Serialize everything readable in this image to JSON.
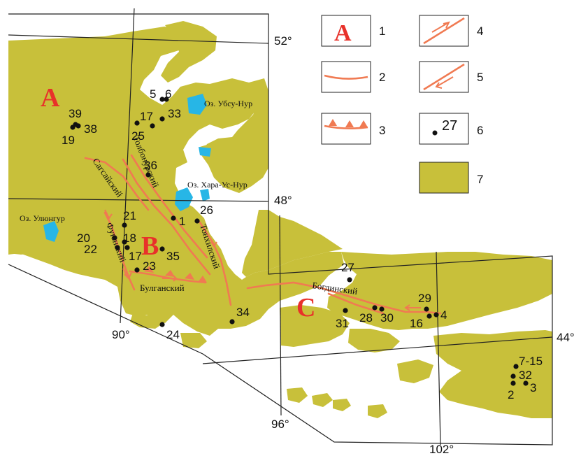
{
  "map": {
    "colors": {
      "land": "#c8c03a",
      "water": "#27b6e6",
      "fault": "#f07a52",
      "frame": "#222222",
      "zone_letter": "#e8312a"
    },
    "graticule_labels": {
      "lat52": "52°",
      "lat48": "48°",
      "lat44": "44°",
      "lon90": "90°",
      "lon96": "96°",
      "lon102": "102°"
    },
    "zones": {
      "a": "A",
      "b": "B",
      "c": "C"
    },
    "lakes": {
      "uvs": "Оз. Убсу-Нур",
      "khara": "Оз. Хара-Ус-Нур",
      "ulungur": "Оз. Улюнгур"
    },
    "faults": {
      "sagsai": "Сагсайский",
      "tolbonur": "Толбонурский",
      "tonkhil": "Тонхилский",
      "fuyun": "Фуюнский",
      "bulgan": "Булганский",
      "bogdin": "Богдинский"
    },
    "sites": [
      {
        "label": "5"
      },
      {
        "label": "6"
      },
      {
        "label": "17"
      },
      {
        "label": "33"
      },
      {
        "label": "25"
      },
      {
        "label": "39"
      },
      {
        "label": "38"
      },
      {
        "label": "19"
      },
      {
        "label": "36"
      },
      {
        "label": "1"
      },
      {
        "label": "26"
      },
      {
        "label": "21"
      },
      {
        "label": "20"
      },
      {
        "label": "18"
      },
      {
        "label": "22"
      },
      {
        "label": "17"
      },
      {
        "label": "35"
      },
      {
        "label": "23"
      },
      {
        "label": "24"
      },
      {
        "label": "34"
      },
      {
        "label": "27"
      },
      {
        "label": "31"
      },
      {
        "label": "28"
      },
      {
        "label": "30"
      },
      {
        "label": "29"
      },
      {
        "label": "16"
      },
      {
        "label": "4"
      },
      {
        "label": "7-15"
      },
      {
        "label": "32"
      },
      {
        "label": "2"
      },
      {
        "label": "3"
      }
    ]
  },
  "legend": {
    "items": [
      {
        "num": "1",
        "symbol_text": "A"
      },
      {
        "num": "2"
      },
      {
        "num": "3"
      },
      {
        "num": "4"
      },
      {
        "num": "5"
      },
      {
        "num": "6",
        "symbol_text": "27"
      },
      {
        "num": "7"
      }
    ]
  }
}
